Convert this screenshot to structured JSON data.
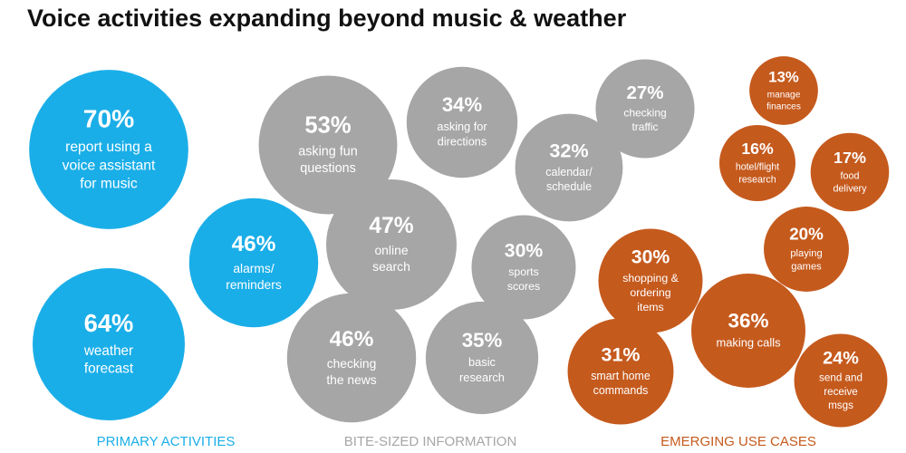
{
  "chart_data": {
    "type": "bubble",
    "title": "Voice activities expanding beyond music & weather",
    "series": [
      {
        "name": "PRIMARY ACTIVITIES",
        "color": "#1aaee8",
        "categories": [
          "report using a\nvoice assistant\nfor music",
          "weather\nforecast",
          "alarms/\nreminders"
        ],
        "values": [
          70,
          64,
          46
        ],
        "value_labels": [
          "70%",
          "64%",
          "46%"
        ]
      },
      {
        "name": "BITE-SIZED INFORMATION",
        "color": "#a6a6a6",
        "categories": [
          "asking fun\nquestions",
          "asking for\ndirections",
          "checking\ntraffic",
          "calendar/\nschedule",
          "online\nsearch",
          "sports\nscores",
          "checking\nthe news",
          "basic\nresearch"
        ],
        "values": [
          53,
          34,
          27,
          32,
          47,
          30,
          46,
          35
        ],
        "value_labels": [
          "53%",
          "34%",
          "27%",
          "32%",
          "47%",
          "30%",
          "46%",
          "35%"
        ]
      },
      {
        "name": "EMERGING USE CASES",
        "color": "#c55a1d",
        "categories": [
          "manage\nfinances",
          "hotel/flight\nresearch",
          "food\ndelivery",
          "playing\ngames",
          "shopping &\nordering\nitems",
          "making calls",
          "smart home\ncommands",
          "send and\nreceive\nmsgs"
        ],
        "values": [
          13,
          16,
          17,
          20,
          30,
          36,
          31,
          24
        ],
        "value_labels": [
          "13%",
          "16%",
          "17%",
          "20%",
          "30%",
          "36%",
          "31%",
          "24%"
        ]
      }
    ]
  }
}
